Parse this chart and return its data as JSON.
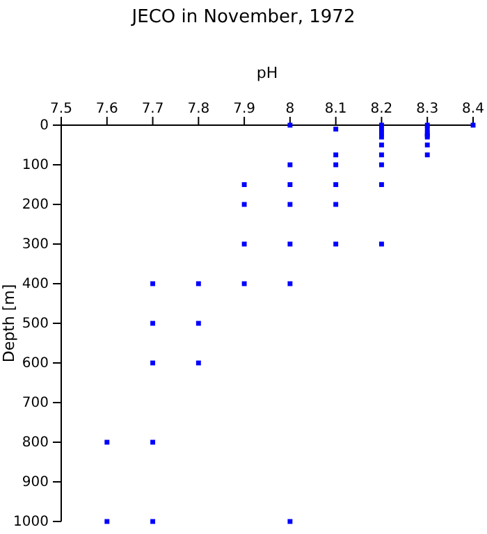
{
  "chart_data": {
    "type": "scatter",
    "title": "JECO in November, 1972",
    "xlabel": "pH",
    "ylabel": "Depth [m]",
    "x": [
      8.4,
      8.3,
      8.3,
      8.3,
      8.3,
      8.3,
      8.3,
      8.3,
      8.2,
      8.2,
      8.2,
      8.2,
      8.2,
      8.2,
      8.2,
      8.2,
      8.2,
      8.1,
      8.1,
      8.1,
      8.1,
      8.1,
      8.1,
      8,
      8,
      8,
      8,
      8,
      8,
      8,
      7.9,
      7.9,
      7.9,
      7.9,
      7.8,
      7.8,
      7.8,
      7.7,
      7.7,
      7.7,
      7.7,
      7.7,
      7.6,
      7.6
    ],
    "values": [
      0,
      0,
      10,
      20,
      25,
      30,
      50,
      75,
      0,
      10,
      20,
      30,
      50,
      75,
      100,
      150,
      300,
      10,
      75,
      100,
      150,
      200,
      300,
      0,
      100,
      150,
      200,
      300,
      400,
      1000,
      150,
      200,
      300,
      400,
      400,
      500,
      600,
      400,
      500,
      600,
      800,
      1000,
      800,
      1000
    ],
    "color": "#0000ff",
    "marker": "square",
    "xlim": [
      7.5,
      8.4
    ],
    "xticks": [
      7.5,
      7.6,
      7.7,
      7.8,
      7.9,
      8,
      8.1,
      8.2,
      8.3,
      8.4
    ],
    "ylim": [
      1000,
      0
    ],
    "yticks": [
      0,
      100,
      200,
      300,
      400,
      500,
      600,
      700,
      800,
      900,
      1000
    ],
    "grid": false
  }
}
